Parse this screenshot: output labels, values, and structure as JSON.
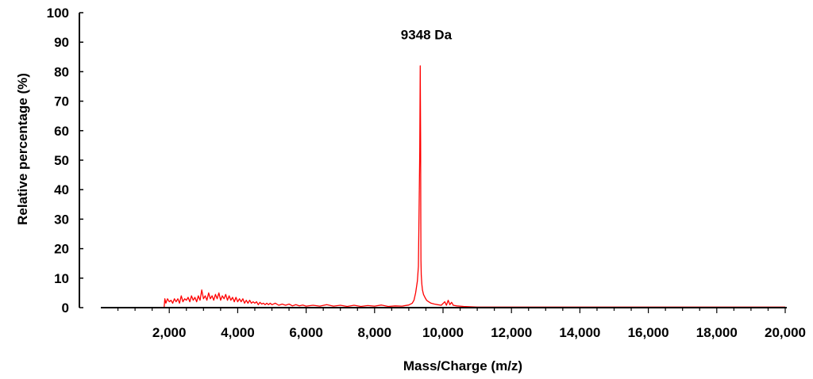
{
  "chart_data": {
    "type": "line",
    "title": "",
    "xlabel": "Mass/Charge (m/z)",
    "ylabel": "Relative percentage (%)",
    "xlim": [
      0,
      20000
    ],
    "ylim": [
      0,
      100
    ],
    "x_ticks": [
      2000,
      4000,
      6000,
      8000,
      10000,
      12000,
      14000,
      16000,
      18000,
      20000
    ],
    "x_tick_labels": [
      "2,000",
      "4,000",
      "6,000",
      "8,000",
      "10,000",
      "12,000",
      "14,000",
      "16,000",
      "18,000",
      "20,000"
    ],
    "y_ticks": [
      0,
      10,
      20,
      30,
      40,
      50,
      60,
      70,
      80,
      90,
      100
    ],
    "y_tick_labels": [
      "0",
      "10",
      "20",
      "30",
      "40",
      "50",
      "60",
      "70",
      "80",
      "90",
      "100"
    ],
    "grid": false,
    "line_color": "#ff0000",
    "annotation": {
      "text": "9348 Da",
      "x": 9348,
      "y": 84
    },
    "series": [
      {
        "x": [
          0,
          1850,
          1870,
          1900,
          1950,
          2000,
          2050,
          2100,
          2150,
          2200,
          2250,
          2300,
          2350,
          2400,
          2450,
          2500,
          2550,
          2600,
          2650,
          2700,
          2750,
          2800,
          2850,
          2900,
          2950,
          3000,
          3050,
          3100,
          3150,
          3200,
          3250,
          3300,
          3350,
          3400,
          3450,
          3500,
          3550,
          3600,
          3650,
          3700,
          3750,
          3800,
          3850,
          3900,
          3950,
          4000,
          4050,
          4100,
          4150,
          4200,
          4250,
          4300,
          4350,
          4400,
          4450,
          4500,
          4550,
          4600,
          4650,
          4700,
          4750,
          4800,
          4850,
          4900,
          4950,
          5000,
          5100,
          5200,
          5300,
          5400,
          5500,
          5600,
          5700,
          5800,
          5900,
          6000,
          6200,
          6400,
          6600,
          6800,
          7000,
          7200,
          7400,
          7600,
          7800,
          8000,
          8200,
          8400,
          8600,
          8800,
          9000,
          9100,
          9150,
          9200,
          9250,
          9280,
          9300,
          9320,
          9335,
          9345,
          9350,
          9355,
          9365,
          9380,
          9400,
          9430,
          9470,
          9520,
          9580,
          9650,
          9750,
          9850,
          9950,
          10050,
          10100,
          10150,
          10200,
          10250,
          10300,
          10400,
          10600,
          10800,
          11000,
          12000,
          14000,
          16000,
          18000,
          20000
        ],
        "y": [
          0,
          0,
          3,
          1.5,
          3,
          2,
          2.5,
          1.5,
          3,
          2,
          3,
          1.5,
          4,
          2,
          3,
          2.5,
          3.5,
          2,
          4,
          2.5,
          3.5,
          2,
          4,
          2.5,
          6,
          3,
          4,
          2.5,
          5,
          3,
          4,
          2.5,
          4.5,
          3,
          5,
          2.5,
          4,
          3,
          4.5,
          2.5,
          4,
          2.5,
          3.5,
          2,
          3.5,
          2,
          3,
          2,
          3,
          1.5,
          2.5,
          1.5,
          2.5,
          1.5,
          2,
          1.5,
          2,
          1,
          1.8,
          1.2,
          1.5,
          1,
          1.5,
          1,
          1.5,
          1,
          1.5,
          0.8,
          1.2,
          0.8,
          1.2,
          0.6,
          1,
          0.6,
          0.9,
          0.5,
          0.8,
          0.5,
          1,
          0.5,
          0.8,
          0.4,
          0.8,
          0.4,
          0.7,
          0.5,
          0.9,
          0.4,
          0.6,
          0.5,
          0.9,
          1.5,
          2.5,
          5,
          9,
          14,
          32,
          53,
          82,
          56,
          31,
          16,
          11,
          8,
          6,
          4.5,
          3.5,
          2.5,
          2,
          1.5,
          1.2,
          1,
          0.8,
          2,
          0.8,
          2.5,
          1,
          1.8,
          0.8,
          0.6,
          0.4,
          0.3,
          0.2,
          0.2,
          0.2,
          0.2,
          0.2,
          0.2
        ]
      }
    ]
  }
}
